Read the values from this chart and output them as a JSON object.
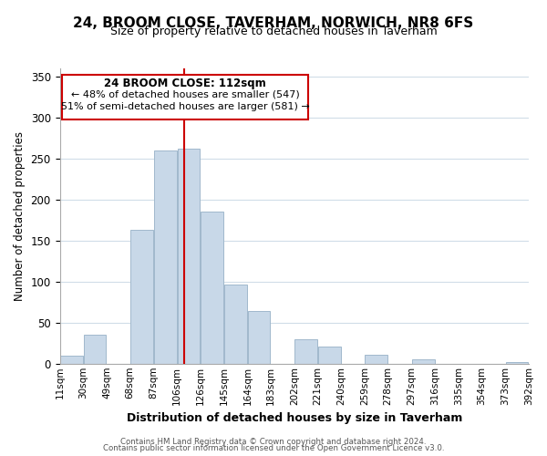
{
  "title": "24, BROOM CLOSE, TAVERHAM, NORWICH, NR8 6FS",
  "subtitle": "Size of property relative to detached houses in Taverham",
  "xlabel": "Distribution of detached houses by size in Taverham",
  "ylabel": "Number of detached properties",
  "bar_color": "#c8d8e8",
  "bar_edge_color": "#a0b8cc",
  "vline_x": 112,
  "vline_color": "#cc0000",
  "bin_edges": [
    11,
    30,
    49,
    68,
    87,
    106,
    125,
    144,
    163,
    182,
    201,
    220,
    239,
    258,
    277,
    296,
    315,
    334,
    353,
    372,
    391
  ],
  "bin_labels": [
    "11sqm",
    "30sqm",
    "49sqm",
    "68sqm",
    "87sqm",
    "106sqm",
    "126sqm",
    "145sqm",
    "164sqm",
    "183sqm",
    "202sqm",
    "221sqm",
    "240sqm",
    "259sqm",
    "278sqm",
    "297sqm",
    "316sqm",
    "335sqm",
    "354sqm",
    "373sqm",
    "392sqm"
  ],
  "heights": [
    10,
    35,
    0,
    163,
    260,
    262,
    185,
    97,
    64,
    0,
    30,
    21,
    0,
    11,
    0,
    5,
    0,
    0,
    0,
    2
  ],
  "ylim": [
    0,
    360
  ],
  "yticks": [
    0,
    50,
    100,
    150,
    200,
    250,
    300,
    350
  ],
  "annotation_title": "24 BROOM CLOSE: 112sqm",
  "annotation_line1": "← 48% of detached houses are smaller (547)",
  "annotation_line2": "51% of semi-detached houses are larger (581) →",
  "annotation_box_color": "#ffffff",
  "annotation_box_edge": "#cc0000",
  "footer1": "Contains HM Land Registry data © Crown copyright and database right 2024.",
  "footer2": "Contains public sector information licensed under the Open Government Licence v3.0.",
  "background_color": "#ffffff",
  "grid_color": "#d0dde8"
}
